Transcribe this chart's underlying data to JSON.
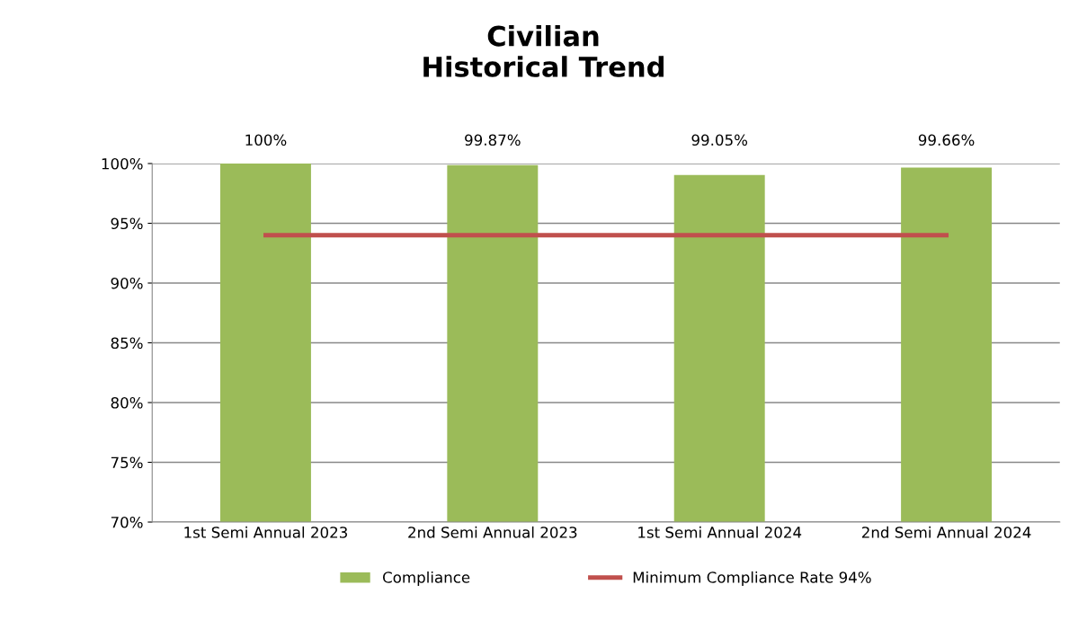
{
  "chart_data": {
    "type": "bar",
    "title": "Civilian\nHistorical Trend",
    "categories": [
      "1st Semi Annual 2023",
      "2nd Semi Annual 2023",
      "1st Semi Annual 2024",
      "2nd Semi Annual 2024"
    ],
    "series": [
      {
        "name": "Compliance",
        "color": "#9bbb59",
        "values": [
          100,
          99.87,
          99.05,
          99.66
        ],
        "value_labels": [
          "100%",
          "99.87%",
          "99.05%",
          "99.66%"
        ]
      },
      {
        "name": "Minimum Compliance Rate 94%",
        "type": "line",
        "color": "#c0504d",
        "values": [
          94,
          94,
          94,
          94
        ]
      }
    ],
    "ylim": [
      70,
      100
    ],
    "yticks": [
      {
        "value": 70,
        "label": "70%"
      },
      {
        "value": 75,
        "label": "75%"
      },
      {
        "value": 80,
        "label": "80%"
      },
      {
        "value": 85,
        "label": "85%"
      },
      {
        "value": 90,
        "label": "90%"
      },
      {
        "value": 95,
        "label": "95%"
      },
      {
        "value": 100,
        "label": "100%"
      }
    ],
    "grid": "y",
    "legend": "bottom",
    "marker": "none"
  }
}
